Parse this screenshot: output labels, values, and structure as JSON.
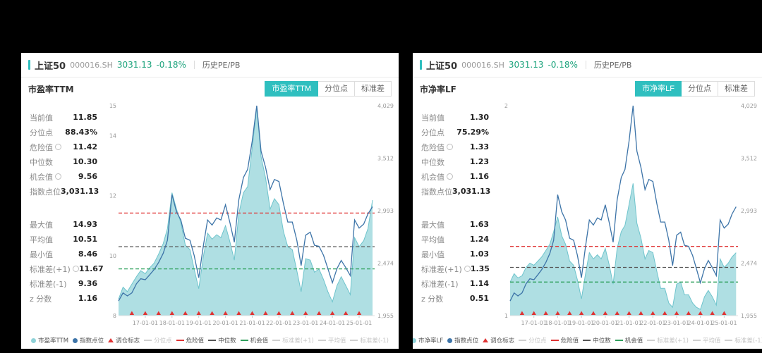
{
  "theme": {
    "background": "#000000",
    "panel_bg": "#ffffff",
    "accent": "#2fbfbf",
    "change_green": "#1ca37c",
    "danger_red": "#e03434",
    "opportunity_green": "#2fa05c",
    "median_dark": "#555555",
    "area_teal": "#a6dce0",
    "index_blue": "#3d74a8",
    "disabled_gray": "#cfcfcf"
  },
  "chart_data": [
    {
      "type": "area",
      "title": "市盈率TTM",
      "x_range": [
        2016,
        2025.58
      ],
      "x": [
        2016,
        2016.17,
        2016.33,
        2016.5,
        2016.67,
        2016.83,
        2017,
        2017.17,
        2017.33,
        2017.5,
        2017.67,
        2017.83,
        2018,
        2018.17,
        2018.33,
        2018.5,
        2018.67,
        2018.83,
        2019,
        2019.17,
        2019.33,
        2019.5,
        2019.67,
        2019.83,
        2020,
        2020.17,
        2020.33,
        2020.5,
        2020.67,
        2020.83,
        2021,
        2021.17,
        2021.33,
        2021.5,
        2021.67,
        2021.83,
        2022,
        2022.17,
        2022.33,
        2022.5,
        2022.67,
        2022.83,
        2023,
        2023.17,
        2023.33,
        2023.5,
        2023.67,
        2023.83,
        2024,
        2024.17,
        2024.33,
        2024.5,
        2024.67,
        2024.83,
        2025,
        2025.17,
        2025.33,
        2025.5
      ],
      "series": [
        {
          "name": "市盈率TTM",
          "kind": "area",
          "axis": "left",
          "color": "#a6dce0",
          "edge": "#6fc4cc",
          "values": [
            8.55,
            8.95,
            8.8,
            9.05,
            9.3,
            9.5,
            9.4,
            9.6,
            9.75,
            10.05,
            10.4,
            10.9,
            12.1,
            11.55,
            11.1,
            10.35,
            10.2,
            9.55,
            8.9,
            9.95,
            10.75,
            10.55,
            10.7,
            10.6,
            11,
            10.45,
            9.85,
            11.4,
            12.1,
            12.3,
            13.6,
            14.93,
            13.3,
            12.6,
            11.55,
            11.9,
            11.7,
            10.8,
            10.3,
            10.2,
            9.5,
            8.8,
            9.9,
            9.85,
            9.45,
            9.55,
            9.2,
            8.8,
            8.46,
            9,
            9.3,
            9,
            8.7,
            10.6,
            10.3,
            10.5,
            10.9,
            11.85
          ]
        },
        {
          "name": "指数点位",
          "kind": "line",
          "axis": "right",
          "color": "#3d74a8",
          "values": [
            2100,
            2180,
            2150,
            2180,
            2270,
            2320,
            2310,
            2360,
            2410,
            2480,
            2570,
            2700,
            3150,
            2980,
            2900,
            2720,
            2700,
            2550,
            2330,
            2640,
            2900,
            2850,
            2920,
            2900,
            3050,
            2870,
            2680,
            3100,
            3320,
            3400,
            3680,
            4029,
            3580,
            3420,
            3200,
            3300,
            3280,
            3060,
            2880,
            2880,
            2700,
            2450,
            2750,
            2780,
            2650,
            2640,
            2550,
            2420,
            2280,
            2420,
            2500,
            2430,
            2350,
            2900,
            2820,
            2860,
            2960,
            3031
          ]
        }
      ],
      "hlines": [
        {
          "name": "危险值",
          "value": 11.42,
          "color": "#e03434"
        },
        {
          "name": "中位数",
          "value": 10.3,
          "color": "#555555"
        },
        {
          "name": "机会值",
          "value": 9.56,
          "color": "#2fa05c"
        }
      ],
      "markers": {
        "name": "调仓标志",
        "color": "#e03434",
        "x": [
          2016.5,
          2017,
          2017.5,
          2018,
          2018.5,
          2019,
          2019.5,
          2020,
          2020.5,
          2021,
          2021.5,
          2022,
          2022.5,
          2023,
          2023.5,
          2024,
          2024.5,
          2025
        ]
      },
      "x_ticks": {
        "values": [
          2017,
          2018,
          2019,
          2020,
          2021,
          2022,
          2023,
          2024,
          2025
        ],
        "labels": [
          "17-01-01",
          "18-01-01",
          "19-01-01",
          "20-01-01",
          "21-01-01",
          "22-01-01",
          "23-01-01",
          "24-01-01",
          "25-01-01"
        ]
      },
      "left_axis": {
        "range": [
          8,
          15
        ],
        "ticks": [
          8,
          10,
          12,
          14,
          15
        ]
      },
      "right_axis": {
        "range": [
          1955,
          4029
        ],
        "ticks": [
          1955,
          2474,
          2993,
          3512,
          4029
        ],
        "labels": [
          "1,955",
          "2,474",
          "2,993",
          "3,512",
          "4,029"
        ]
      },
      "grid": false,
      "legend_position": "bottom"
    },
    {
      "type": "area",
      "title": "市净率LF",
      "x_range": [
        2016,
        2025.58
      ],
      "x": [
        2016,
        2016.17,
        2016.33,
        2016.5,
        2016.67,
        2016.83,
        2017,
        2017.17,
        2017.33,
        2017.5,
        2017.67,
        2017.83,
        2018,
        2018.17,
        2018.33,
        2018.5,
        2018.67,
        2018.83,
        2019,
        2019.17,
        2019.33,
        2019.5,
        2019.67,
        2019.83,
        2020,
        2020.17,
        2020.33,
        2020.5,
        2020.67,
        2020.83,
        2021,
        2021.17,
        2021.33,
        2021.5,
        2021.67,
        2021.83,
        2022,
        2022.17,
        2022.33,
        2022.5,
        2022.67,
        2022.83,
        2023,
        2023.17,
        2023.33,
        2023.5,
        2023.67,
        2023.83,
        2024,
        2024.17,
        2024.33,
        2024.5,
        2024.67,
        2024.83,
        2025,
        2025.17,
        2025.33,
        2025.5
      ],
      "series": [
        {
          "name": "市净率LF",
          "kind": "area",
          "axis": "left",
          "color": "#a6dce0",
          "edge": "#6fc4cc",
          "values": [
            1.16,
            1.2,
            1.18,
            1.19,
            1.23,
            1.25,
            1.24,
            1.26,
            1.28,
            1.31,
            1.34,
            1.4,
            1.47,
            1.38,
            1.34,
            1.26,
            1.24,
            1.17,
            1.08,
            1.2,
            1.3,
            1.27,
            1.29,
            1.27,
            1.32,
            1.24,
            1.15,
            1.32,
            1.4,
            1.43,
            1.53,
            1.63,
            1.44,
            1.37,
            1.27,
            1.31,
            1.3,
            1.21,
            1.13,
            1.13,
            1.06,
            1.04,
            1.15,
            1.16,
            1.1,
            1.1,
            1.06,
            1.04,
            1.03,
            1.09,
            1.12,
            1.09,
            1.05,
            1.27,
            1.23,
            1.25,
            1.28,
            1.3
          ]
        },
        {
          "name": "指数点位",
          "kind": "line",
          "axis": "right",
          "color": "#3d74a8",
          "values": [
            2100,
            2180,
            2150,
            2180,
            2270,
            2320,
            2310,
            2360,
            2410,
            2480,
            2570,
            2700,
            3150,
            2980,
            2900,
            2720,
            2700,
            2550,
            2330,
            2640,
            2900,
            2850,
            2920,
            2900,
            3050,
            2870,
            2680,
            3100,
            3320,
            3400,
            3680,
            4029,
            3580,
            3420,
            3200,
            3300,
            3280,
            3060,
            2880,
            2880,
            2700,
            2450,
            2750,
            2780,
            2650,
            2640,
            2550,
            2420,
            2280,
            2420,
            2500,
            2430,
            2350,
            2900,
            2820,
            2860,
            2960,
            3031
          ]
        }
      ],
      "hlines": [
        {
          "name": "危险值",
          "value": 1.33,
          "color": "#e03434"
        },
        {
          "name": "中位数",
          "value": 1.23,
          "color": "#555555"
        },
        {
          "name": "机会值",
          "value": 1.16,
          "color": "#2fa05c"
        }
      ],
      "markers": {
        "name": "调仓标志",
        "color": "#e03434",
        "x": [
          2016.5,
          2017,
          2017.5,
          2018,
          2018.5,
          2019,
          2019.5,
          2020,
          2020.5,
          2021,
          2021.5,
          2022,
          2022.5,
          2023,
          2023.5,
          2024,
          2024.5,
          2025
        ]
      },
      "x_ticks": {
        "values": [
          2017,
          2018,
          2019,
          2020,
          2021,
          2022,
          2023,
          2024,
          2025
        ],
        "labels": [
          "17-01-01",
          "18-01-01",
          "19-01-01",
          "20-01-01",
          "21-01-01",
          "22-01-01",
          "23-01-01",
          "24-01-01",
          "25-01-01"
        ]
      },
      "left_axis": {
        "range": [
          1,
          2
        ],
        "ticks": [
          1,
          2
        ]
      },
      "right_axis": {
        "range": [
          1955,
          4029
        ],
        "ticks": [
          1955,
          2474,
          2993,
          3512,
          4029
        ],
        "labels": [
          "1,955",
          "2,474",
          "2,993",
          "3,512",
          "4,029"
        ]
      },
      "grid": false,
      "legend_position": "bottom"
    }
  ],
  "panels": [
    {
      "header": {
        "name": "上证50",
        "code": "000016.SH",
        "price": "3031.13",
        "change": "-0.18%",
        "subtitle": "历史PE/PB"
      },
      "chart_title": "市盈率TTM",
      "tabs": [
        {
          "id": "pe-ttm",
          "label": "市盈率TTM",
          "active": true
        },
        {
          "id": "percentile",
          "label": "分位点",
          "active": false
        },
        {
          "id": "std-dev",
          "label": "标准差",
          "active": false
        }
      ],
      "stats_top": [
        {
          "label": "当前值",
          "value": "11.85"
        },
        {
          "label": "分位点",
          "value": "88.43%"
        },
        {
          "label": "危险值",
          "value": "11.42",
          "info": true
        },
        {
          "label": "中位数",
          "value": "10.30"
        },
        {
          "label": "机会值",
          "value": "9.56",
          "info": true
        },
        {
          "label": "指数点位",
          "value": "3,031.13"
        }
      ],
      "stats_bottom": [
        {
          "label": "最大值",
          "value": "14.93"
        },
        {
          "label": "平均值",
          "value": "10.51"
        },
        {
          "label": "最小值",
          "value": "8.46"
        },
        {
          "label": "标准差(+1)",
          "value": "11.67",
          "info": true
        },
        {
          "label": "标准差(-1)",
          "value": "9.36"
        },
        {
          "label": "z 分数",
          "value": "1.16"
        }
      ],
      "legend": [
        {
          "label": "市盈率TTM",
          "marker": "circle",
          "color": "#8fd2d8",
          "disabled": false
        },
        {
          "label": "指数点位",
          "marker": "circle",
          "color": "#3d74a8",
          "disabled": false
        },
        {
          "label": "调仓标志",
          "marker": "triangle",
          "color": "#e03434",
          "disabled": false
        },
        {
          "label": "分位点",
          "marker": "dash",
          "color": "#cfcfcf",
          "disabled": true
        },
        {
          "label": "危险值",
          "marker": "dash",
          "color": "#e03434",
          "disabled": false
        },
        {
          "label": "中位数",
          "marker": "dash",
          "color": "#555555",
          "disabled": false
        },
        {
          "label": "机会值",
          "marker": "dash",
          "color": "#2fa05c",
          "disabled": false
        },
        {
          "label": "标准差(+1)",
          "marker": "dash",
          "color": "#cfcfcf",
          "disabled": true
        },
        {
          "label": "平均值",
          "marker": "dash",
          "color": "#cfcfcf",
          "disabled": true
        },
        {
          "label": "标准差(-1)",
          "marker": "dash",
          "color": "#cfcfcf",
          "disabled": true
        }
      ]
    },
    {
      "header": {
        "name": "上证50",
        "code": "000016.SH",
        "price": "3031.13",
        "change": "-0.18%",
        "subtitle": "历史PE/PB"
      },
      "chart_title": "市净率LF",
      "tabs": [
        {
          "id": "pb-lf",
          "label": "市净率LF",
          "active": true
        },
        {
          "id": "percentile",
          "label": "分位点",
          "active": false
        },
        {
          "id": "std-dev",
          "label": "标准差",
          "active": false
        }
      ],
      "stats_top": [
        {
          "label": "当前值",
          "value": "1.30"
        },
        {
          "label": "分位点",
          "value": "75.29%"
        },
        {
          "label": "危险值",
          "value": "1.33",
          "info": true
        },
        {
          "label": "中位数",
          "value": "1.23"
        },
        {
          "label": "机会值",
          "value": "1.16",
          "info": true
        },
        {
          "label": "指数点位",
          "value": "3,031.13"
        }
      ],
      "stats_bottom": [
        {
          "label": "最大值",
          "value": "1.63"
        },
        {
          "label": "平均值",
          "value": "1.24"
        },
        {
          "label": "最小值",
          "value": "1.03"
        },
        {
          "label": "标准差(+1)",
          "value": "1.35",
          "info": true
        },
        {
          "label": "标准差(-1)",
          "value": "1.14"
        },
        {
          "label": "z 分数",
          "value": "0.51"
        }
      ],
      "legend": [
        {
          "label": "市净率LF",
          "marker": "circle",
          "color": "#8fd2d8",
          "disabled": false
        },
        {
          "label": "指数点位",
          "marker": "circle",
          "color": "#3d74a8",
          "disabled": false
        },
        {
          "label": "调仓标志",
          "marker": "triangle",
          "color": "#e03434",
          "disabled": false
        },
        {
          "label": "分位点",
          "marker": "dash",
          "color": "#cfcfcf",
          "disabled": true
        },
        {
          "label": "危险值",
          "marker": "dash",
          "color": "#e03434",
          "disabled": false
        },
        {
          "label": "中位数",
          "marker": "dash",
          "color": "#555555",
          "disabled": false
        },
        {
          "label": "机会值",
          "marker": "dash",
          "color": "#2fa05c",
          "disabled": false
        },
        {
          "label": "标准差(+1)",
          "marker": "dash",
          "color": "#cfcfcf",
          "disabled": true
        },
        {
          "label": "平均值",
          "marker": "dash",
          "color": "#cfcfcf",
          "disabled": true
        },
        {
          "label": "标准差(-1)",
          "marker": "dash",
          "color": "#cfcfcf",
          "disabled": true
        }
      ]
    }
  ]
}
